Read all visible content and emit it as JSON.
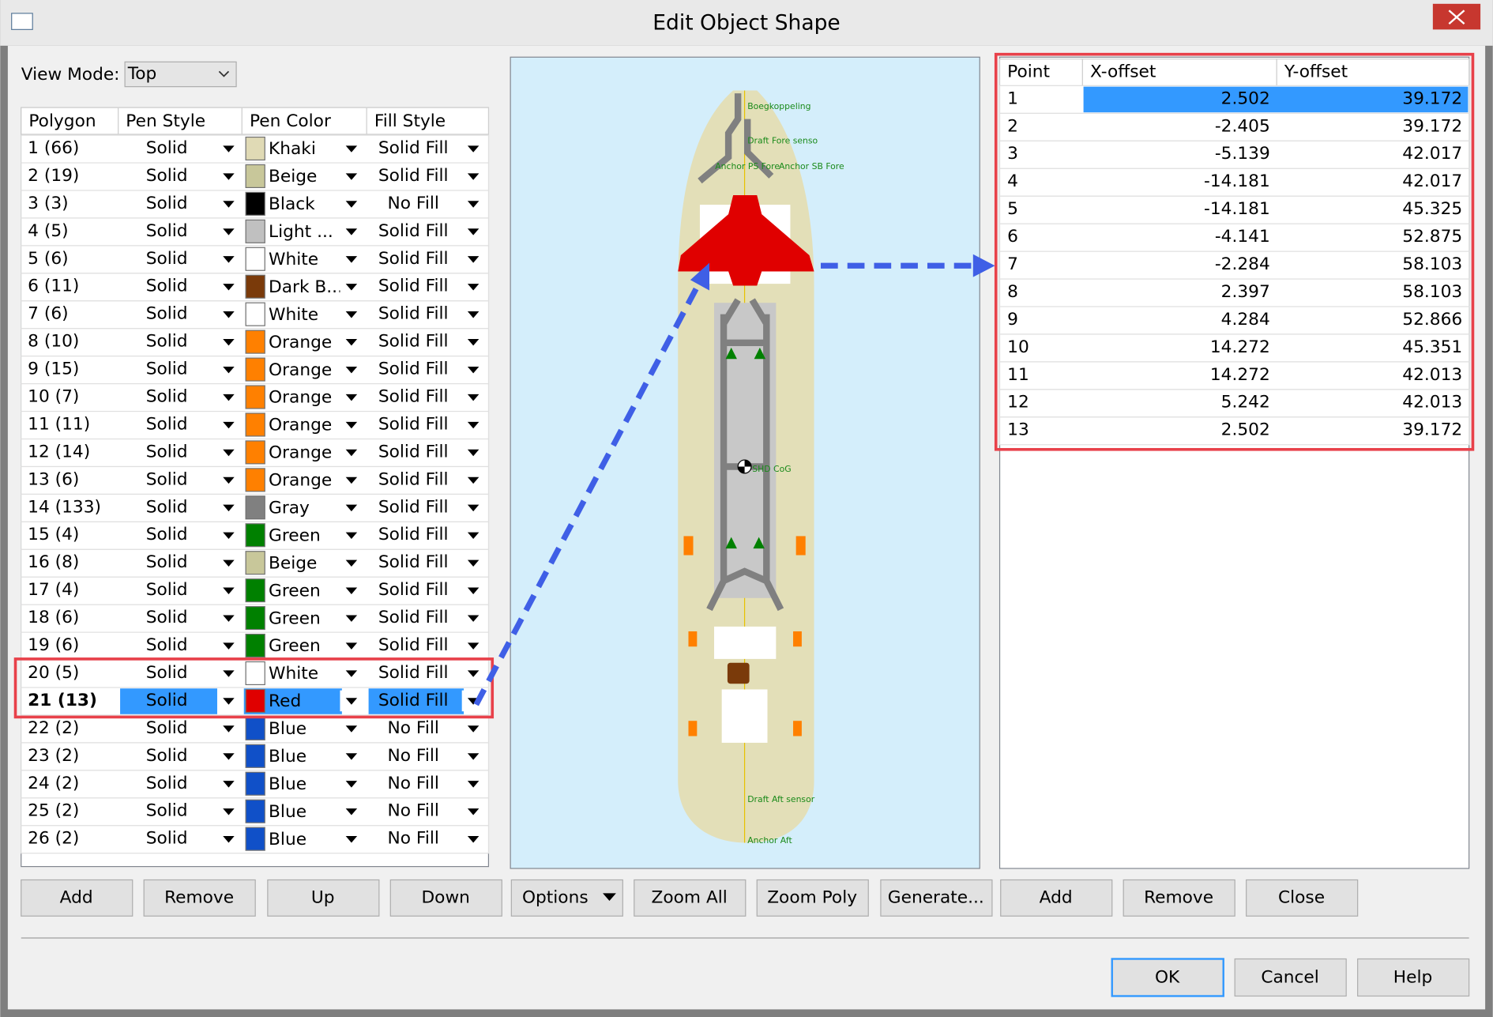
{
  "window": {
    "title": "Edit Object Shape"
  },
  "view_mode": {
    "label": "View Mode:",
    "value": "Top"
  },
  "polygons": {
    "headers": [
      "Polygon",
      "Pen Style",
      "Pen Color",
      "Fill Style"
    ],
    "rows": [
      [
        "1 (66)",
        "Solid",
        "Khaki",
        "Solid Fill"
      ],
      [
        "2 (19)",
        "Solid",
        "Beige",
        "Solid Fill"
      ],
      [
        "3 (3)",
        "Solid",
        "Black",
        "No Fill"
      ],
      [
        "4 (5)",
        "Solid",
        "Light ...",
        "Solid Fill"
      ],
      [
        "5 (6)",
        "Solid",
        "White",
        "Solid Fill"
      ],
      [
        "6 (11)",
        "Solid",
        "Dark B...",
        "Solid Fill"
      ],
      [
        "7 (6)",
        "Solid",
        "White",
        "Solid Fill"
      ],
      [
        "8 (10)",
        "Solid",
        "Orange",
        "Solid Fill"
      ],
      [
        "9 (15)",
        "Solid",
        "Orange",
        "Solid Fill"
      ],
      [
        "10 (7)",
        "Solid",
        "Orange",
        "Solid Fill"
      ],
      [
        "11 (11)",
        "Solid",
        "Orange",
        "Solid Fill"
      ],
      [
        "12 (14)",
        "Solid",
        "Orange",
        "Solid Fill"
      ],
      [
        "13 (6)",
        "Solid",
        "Orange",
        "Solid Fill"
      ],
      [
        "14 (133)",
        "Solid",
        "Gray",
        "Solid Fill"
      ],
      [
        "15 (4)",
        "Solid",
        "Green",
        "Solid Fill"
      ],
      [
        "16 (8)",
        "Solid",
        "Beige",
        "Solid Fill"
      ],
      [
        "17 (4)",
        "Solid",
        "Green",
        "Solid Fill"
      ],
      [
        "18 (6)",
        "Solid",
        "Green",
        "Solid Fill"
      ],
      [
        "19 (6)",
        "Solid",
        "Green",
        "Solid Fill"
      ],
      [
        "20 (5)",
        "Solid",
        "White",
        "Solid Fill"
      ],
      [
        "21 (13)",
        "Solid",
        "Red",
        "Solid Fill"
      ],
      [
        "22 (2)",
        "Solid",
        "Blue",
        "No Fill"
      ],
      [
        "23 (2)",
        "Solid",
        "Blue",
        "No Fill"
      ],
      [
        "24 (2)",
        "Solid",
        "Blue",
        "No Fill"
      ],
      [
        "25 (2)",
        "Solid",
        "Blue",
        "No Fill"
      ],
      [
        "26 (2)",
        "Solid",
        "Blue",
        "No Fill"
      ]
    ],
    "swatches": [
      "#e0dab5",
      "#c8c79a",
      "#000000",
      "#c0c0c0",
      "#ffffff",
      "#7a3a0a",
      "#ffffff",
      "#ff8000",
      "#ff8000",
      "#ff8000",
      "#ff8000",
      "#ff8000",
      "#ff8000",
      "#808080",
      "#008000",
      "#c8c79a",
      "#008000",
      "#008000",
      "#008000",
      "#ffffff",
      "#e00000",
      "#1050c8",
      "#1050c8",
      "#1050c8",
      "#1050c8",
      "#1050c8"
    ]
  },
  "canvas_labels": [
    "Boegkoppeling",
    "Draft Fore senso",
    "Anchor PS Fore",
    "Anchor SB Fore",
    "SHD CoG",
    "Draft Aft sensor",
    "Anchor Aft"
  ],
  "points": {
    "headers": [
      "Point",
      "X-offset",
      "Y-offset"
    ],
    "rows": [
      [
        "1",
        "2.502",
        "39.172"
      ],
      [
        "2",
        "-2.405",
        "39.172"
      ],
      [
        "3",
        "-5.139",
        "42.017"
      ],
      [
        "4",
        "-14.181",
        "42.017"
      ],
      [
        "5",
        "-14.181",
        "45.325"
      ],
      [
        "6",
        "-4.141",
        "52.875"
      ],
      [
        "7",
        "-2.284",
        "58.103"
      ],
      [
        "8",
        "2.397",
        "58.103"
      ],
      [
        "9",
        "4.284",
        "52.866"
      ],
      [
        "10",
        "14.272",
        "45.351"
      ],
      [
        "11",
        "14.272",
        "42.013"
      ],
      [
        "12",
        "5.242",
        "42.013"
      ],
      [
        "13",
        "2.502",
        "39.172"
      ]
    ]
  },
  "buttons": [
    "Add",
    "Remove",
    "Up",
    "Down",
    "Options",
    "Zoom All",
    "Zoom Poly",
    "Generate...",
    "Add",
    "Remove",
    "Close"
  ],
  "dialog_buttons": [
    "OK",
    "Cancel",
    "Help"
  ]
}
